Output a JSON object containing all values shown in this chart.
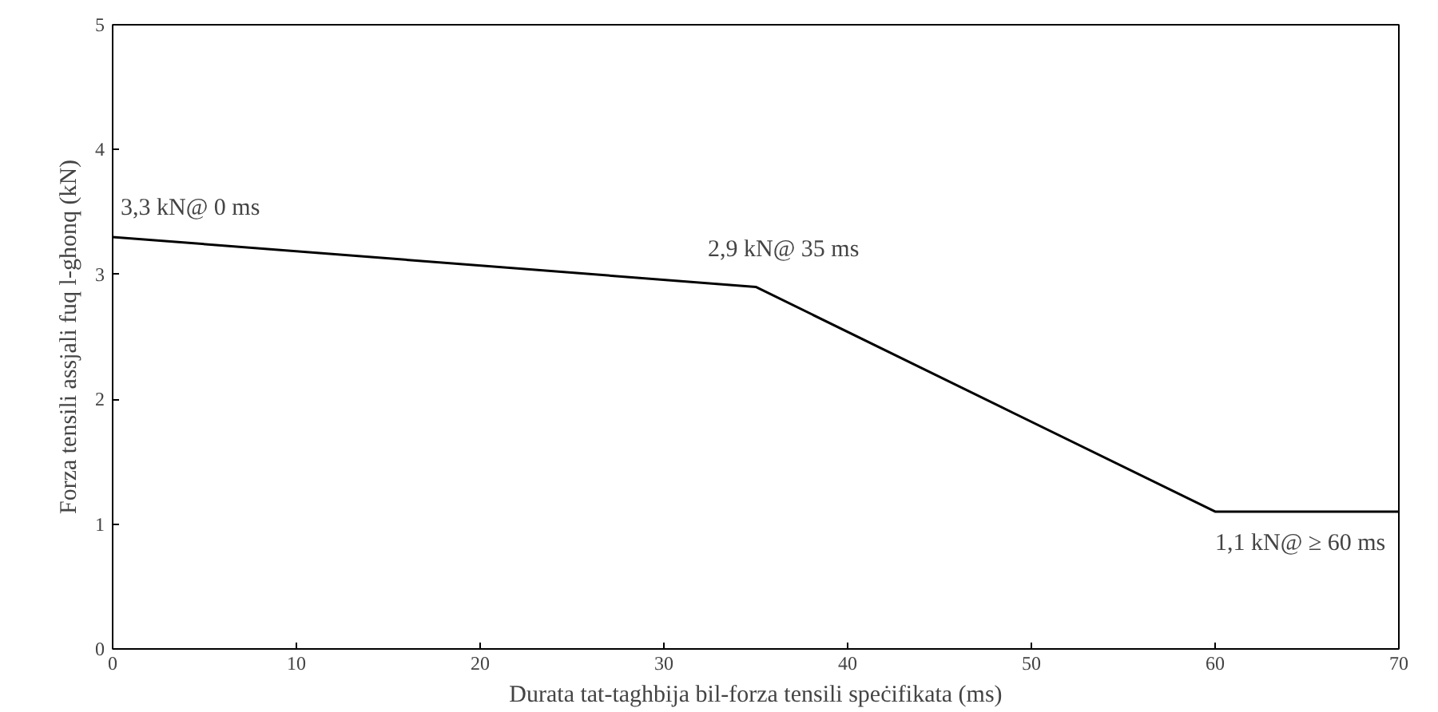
{
  "chart_data": {
    "type": "line",
    "xlabel": "Durata tat-taghbija bil-forza tensili speċifikata (ms)",
    "ylabel": "Forza tensili assjali fuq l-ghonq (kN)",
    "x": [
      0,
      35,
      60,
      70
    ],
    "series": [
      {
        "color": "#000000",
        "values": [
          3.3,
          2.9,
          1.1,
          1.1
        ]
      }
    ],
    "xlim": [
      0,
      70
    ],
    "xticks": [
      0,
      10,
      20,
      30,
      40,
      50,
      60,
      70
    ],
    "ylim": [
      0,
      5
    ],
    "yticks": [
      0,
      1,
      2,
      3,
      4,
      5
    ],
    "grid": false,
    "marker": "none",
    "line_style": "solid",
    "annotations": [
      {
        "text": "3,3 kN@ 0 ms",
        "x": 0,
        "y": 3.3
      },
      {
        "text": "2,9 kN@ 35 ms",
        "x": 35,
        "y": 2.9
      },
      {
        "text": "1,1 kN@ ≥ 60 ms",
        "x": 60,
        "y": 1.1
      }
    ]
  }
}
